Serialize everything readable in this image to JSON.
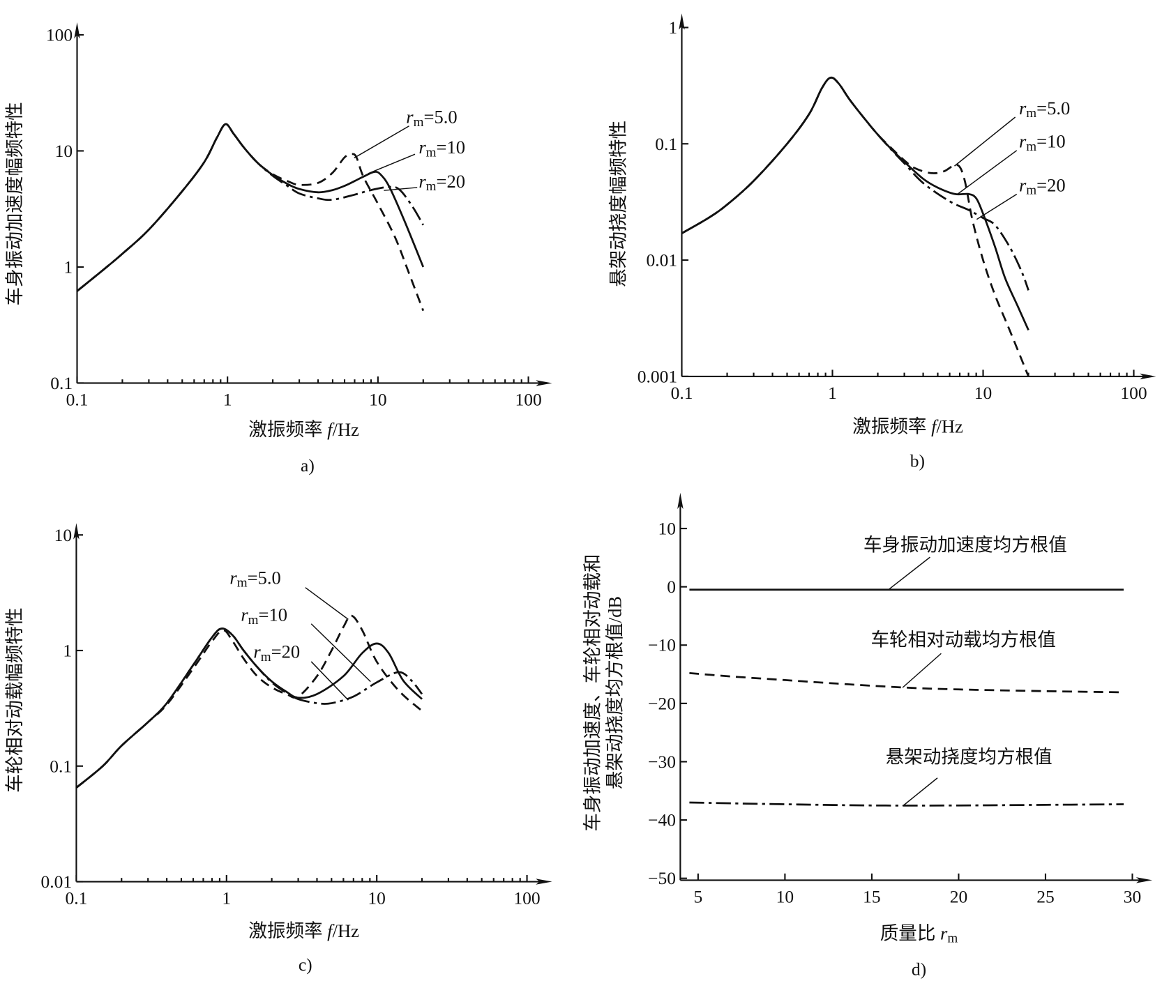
{
  "chart_data": [
    {
      "id": "a",
      "type": "line",
      "caption": "a)",
      "xlabel": {
        "prefix": "激振频率 ",
        "var": "f",
        "suffix": "/Hz"
      },
      "ylabel": "车身振动加速度幅频特性",
      "xscale": "log",
      "yscale": "log",
      "xlim": [
        0.1,
        100
      ],
      "ylim": [
        0.1,
        100
      ],
      "xticks": [
        {
          "v": 0.1,
          "label": "0.1"
        },
        {
          "v": 1,
          "label": "1"
        },
        {
          "v": 10,
          "label": "10"
        },
        {
          "v": 100,
          "label": "100"
        }
      ],
      "yticks": [
        {
          "v": 0.1,
          "label": "0.1"
        },
        {
          "v": 1,
          "label": "1"
        },
        {
          "v": 10,
          "label": "10"
        },
        {
          "v": 100,
          "label": "100"
        }
      ],
      "series": [
        {
          "name": "rm=5.0",
          "label": {
            "var": "r",
            "sub": "m",
            "eq": "=5.0"
          },
          "style": "dashed",
          "x": [
            0.1,
            0.15,
            0.2,
            0.3,
            0.5,
            0.7,
            0.85,
            0.97,
            1.1,
            1.3,
            1.6,
            2,
            2.5,
            3,
            4,
            5,
            6,
            6.7,
            7.2,
            8,
            10,
            13,
            16,
            20
          ],
          "y": [
            0.62,
            0.95,
            1.3,
            2.1,
            4.5,
            8,
            13,
            17,
            14,
            10.5,
            7.8,
            6.3,
            5.5,
            5.1,
            5.3,
            6.5,
            8.8,
            9.4,
            8.8,
            6,
            3.5,
            1.8,
            0.9,
            0.42
          ]
        },
        {
          "name": "rm=10",
          "label": {
            "var": "r",
            "sub": "m",
            "eq": "=10"
          },
          "style": "solid",
          "x": [
            0.1,
            0.15,
            0.2,
            0.3,
            0.5,
            0.7,
            0.85,
            0.97,
            1.1,
            1.3,
            1.6,
            2,
            2.5,
            3,
            4,
            5,
            6,
            7,
            8,
            9.5,
            10.5,
            12,
            15,
            20
          ],
          "y": [
            0.62,
            0.95,
            1.3,
            2.1,
            4.5,
            8,
            13,
            17,
            14,
            10.5,
            7.8,
            6.2,
            5.2,
            4.7,
            4.4,
            4.6,
            5,
            5.5,
            6,
            6.6,
            6.2,
            4.8,
            2.5,
            1.0
          ]
        },
        {
          "name": "rm=20",
          "label": {
            "var": "r",
            "sub": "m",
            "eq": "=20"
          },
          "style": "dashdot",
          "x": [
            0.1,
            0.15,
            0.2,
            0.3,
            0.5,
            0.7,
            0.85,
            0.97,
            1.1,
            1.3,
            1.6,
            2,
            2.5,
            3,
            4,
            5,
            7,
            9,
            12,
            14,
            17,
            20
          ],
          "y": [
            0.62,
            0.95,
            1.3,
            2.1,
            4.5,
            8,
            13,
            17,
            14,
            10.5,
            7.8,
            6.1,
            5,
            4.3,
            3.9,
            3.8,
            4.2,
            4.6,
            4.9,
            4.6,
            3.3,
            2.3
          ]
        }
      ]
    },
    {
      "id": "b",
      "type": "line",
      "caption": "b)",
      "xlabel": {
        "prefix": "激振频率 ",
        "var": "f",
        "suffix": "/Hz"
      },
      "ylabel": "悬架动挠度幅频特性",
      "xscale": "log",
      "yscale": "log",
      "xlim": [
        0.1,
        100
      ],
      "ylim": [
        0.001,
        1
      ],
      "xticks": [
        {
          "v": 0.1,
          "label": "0.1"
        },
        {
          "v": 1,
          "label": "1"
        },
        {
          "v": 10,
          "label": "10"
        },
        {
          "v": 100,
          "label": "100"
        }
      ],
      "yticks": [
        {
          "v": 0.001,
          "label": "0.001"
        },
        {
          "v": 0.01,
          "label": "0.01"
        },
        {
          "v": 0.1,
          "label": "0.1"
        },
        {
          "v": 1,
          "label": "1"
        }
      ],
      "series": [
        {
          "name": "rm=5.0",
          "label": {
            "var": "r",
            "sub": "m",
            "eq": "=5.0"
          },
          "style": "dashed",
          "x": [
            0.1,
            0.15,
            0.2,
            0.3,
            0.5,
            0.7,
            0.85,
            0.97,
            1.1,
            1.3,
            1.6,
            2,
            2.5,
            3,
            3.5,
            4.5,
            5.5,
            6.7,
            7.5,
            8.5,
            10,
            12,
            15,
            20
          ],
          "y": [
            0.017,
            0.023,
            0.03,
            0.048,
            0.1,
            0.18,
            0.3,
            0.37,
            0.33,
            0.24,
            0.17,
            0.12,
            0.09,
            0.072,
            0.062,
            0.056,
            0.058,
            0.066,
            0.05,
            0.022,
            0.01,
            0.005,
            0.0025,
            0.001
          ]
        },
        {
          "name": "rm=10",
          "label": {
            "var": "r",
            "sub": "m",
            "eq": "=10"
          },
          "style": "solid",
          "x": [
            0.1,
            0.15,
            0.2,
            0.3,
            0.5,
            0.7,
            0.85,
            0.97,
            1.1,
            1.3,
            1.6,
            2,
            2.5,
            3,
            4,
            5,
            6.5,
            8,
            9,
            10,
            12,
            14,
            17,
            20
          ],
          "y": [
            0.017,
            0.023,
            0.03,
            0.048,
            0.1,
            0.18,
            0.3,
            0.37,
            0.33,
            0.24,
            0.17,
            0.12,
            0.088,
            0.07,
            0.05,
            0.042,
            0.037,
            0.037,
            0.034,
            0.025,
            0.013,
            0.007,
            0.004,
            0.0025
          ]
        },
        {
          "name": "rm=20",
          "label": {
            "var": "r",
            "sub": "m",
            "eq": "=20"
          },
          "style": "dashdot",
          "x": [
            0.1,
            0.15,
            0.2,
            0.3,
            0.5,
            0.7,
            0.85,
            0.97,
            1.1,
            1.3,
            1.6,
            2,
            2.5,
            3,
            4,
            6,
            8,
            10,
            12,
            15,
            18,
            20
          ],
          "y": [
            0.017,
            0.023,
            0.03,
            0.048,
            0.1,
            0.18,
            0.3,
            0.37,
            0.33,
            0.24,
            0.17,
            0.12,
            0.087,
            0.068,
            0.046,
            0.032,
            0.027,
            0.023,
            0.02,
            0.013,
            0.008,
            0.0055
          ]
        }
      ]
    },
    {
      "id": "c",
      "type": "line",
      "caption": "c)",
      "xlabel": {
        "prefix": "激振频率 ",
        "var": "f",
        "suffix": "/Hz"
      },
      "ylabel": "车轮相对动载幅频特性",
      "xscale": "log",
      "yscale": "log",
      "xlim": [
        0.1,
        100
      ],
      "ylim": [
        0.01,
        10
      ],
      "xticks": [
        {
          "v": 0.1,
          "label": "0.1"
        },
        {
          "v": 1,
          "label": "1"
        },
        {
          "v": 10,
          "label": "10"
        },
        {
          "v": 100,
          "label": "100"
        }
      ],
      "yticks": [
        {
          "v": 0.01,
          "label": "0.01"
        },
        {
          "v": 0.1,
          "label": "0.1"
        },
        {
          "v": 1,
          "label": "1"
        },
        {
          "v": 10,
          "label": "10"
        }
      ],
      "series": [
        {
          "name": "rm=5.0",
          "label": {
            "var": "r",
            "sub": "m",
            "eq": "=5.0"
          },
          "style": "dashed",
          "x": [
            0.1,
            0.15,
            0.2,
            0.3,
            0.4,
            0.6,
            0.8,
            0.95,
            1.1,
            1.3,
            1.6,
            2,
            2.5,
            3,
            4,
            5,
            6,
            6.8,
            8,
            10,
            14,
            20
          ],
          "y": [
            0.065,
            0.1,
            0.15,
            0.24,
            0.34,
            0.7,
            1.2,
            1.5,
            1.2,
            0.85,
            0.6,
            0.48,
            0.42,
            0.4,
            0.6,
            1.0,
            1.6,
            2.0,
            1.5,
            0.8,
            0.45,
            0.3
          ]
        },
        {
          "name": "rm=10",
          "label": {
            "var": "r",
            "sub": "m",
            "eq": "=10"
          },
          "style": "solid",
          "x": [
            0.1,
            0.15,
            0.2,
            0.3,
            0.4,
            0.6,
            0.8,
            0.93,
            1.1,
            1.3,
            1.6,
            2,
            2.5,
            3,
            4,
            6,
            8,
            10,
            12,
            15,
            20
          ],
          "y": [
            0.065,
            0.1,
            0.15,
            0.24,
            0.35,
            0.75,
            1.3,
            1.55,
            1.35,
            1.0,
            0.72,
            0.54,
            0.44,
            0.39,
            0.42,
            0.6,
            0.95,
            1.15,
            0.95,
            0.55,
            0.38
          ]
        },
        {
          "name": "rm=20",
          "label": {
            "var": "r",
            "sub": "m",
            "eq": "=20"
          },
          "style": "dashdot",
          "x": [
            0.1,
            0.15,
            0.2,
            0.3,
            0.4,
            0.6,
            0.8,
            0.93,
            1.1,
            1.3,
            1.6,
            2,
            2.5,
            3,
            4,
            5,
            7,
            10,
            14,
            17,
            20
          ],
          "y": [
            0.065,
            0.1,
            0.15,
            0.24,
            0.35,
            0.75,
            1.3,
            1.55,
            1.35,
            1.0,
            0.72,
            0.53,
            0.43,
            0.38,
            0.35,
            0.35,
            0.4,
            0.53,
            0.65,
            0.55,
            0.42
          ]
        }
      ]
    },
    {
      "id": "d",
      "type": "line",
      "caption": "d)",
      "xlabel": {
        "prefix": "质量比 ",
        "var": "r",
        "sub": "m",
        "suffix": ""
      },
      "ylabel": [
        "车身振动加速度、车轮相对动载和",
        "悬架动挠度均方根值/dB"
      ],
      "xscale": "linear",
      "yscale": "linear",
      "xlim": [
        4,
        31
      ],
      "ylim": [
        -50,
        13
      ],
      "xticks": [
        {
          "v": 5,
          "label": "5"
        },
        {
          "v": 10,
          "label": "10"
        },
        {
          "v": 15,
          "label": "15"
        },
        {
          "v": 20,
          "label": "20"
        },
        {
          "v": 25,
          "label": "25"
        },
        {
          "v": 30,
          "label": "30"
        }
      ],
      "yticks": [
        {
          "v": 10,
          "label": "10"
        },
        {
          "v": 0,
          "label": "0"
        },
        {
          "v": -10,
          "label": "−10"
        },
        {
          "v": -20,
          "label": "−20"
        },
        {
          "v": -30,
          "label": "−30"
        },
        {
          "v": -40,
          "label": "−40"
        },
        {
          "v": -50,
          "label": "−50"
        }
      ],
      "series": [
        {
          "name": "车身振动加速度均方根值",
          "label": {
            "text": "车身振动加速度均方根值"
          },
          "style": "solid",
          "x": [
            4.5,
            10,
            15,
            20,
            25,
            29.5
          ],
          "y": [
            -0.5,
            -0.5,
            -0.5,
            -0.5,
            -0.5,
            -0.5
          ]
        },
        {
          "name": "车轮相对动载均方根值",
          "label": {
            "text": "车轮相对动载均方根值"
          },
          "style": "dashed",
          "x": [
            4.5,
            7,
            10,
            13,
            17,
            20,
            25,
            29.5
          ],
          "y": [
            -14.8,
            -15.4,
            -16,
            -16.6,
            -17.3,
            -17.6,
            -17.9,
            -18.1
          ]
        },
        {
          "name": "悬架动挠度均方根值",
          "label": {
            "text": "悬架动挠度均方根值"
          },
          "style": "dashdot",
          "x": [
            4.5,
            10,
            15,
            20,
            25,
            29.5
          ],
          "y": [
            -37,
            -37.3,
            -37.5,
            -37.5,
            -37.4,
            -37.3
          ]
        }
      ]
    }
  ]
}
